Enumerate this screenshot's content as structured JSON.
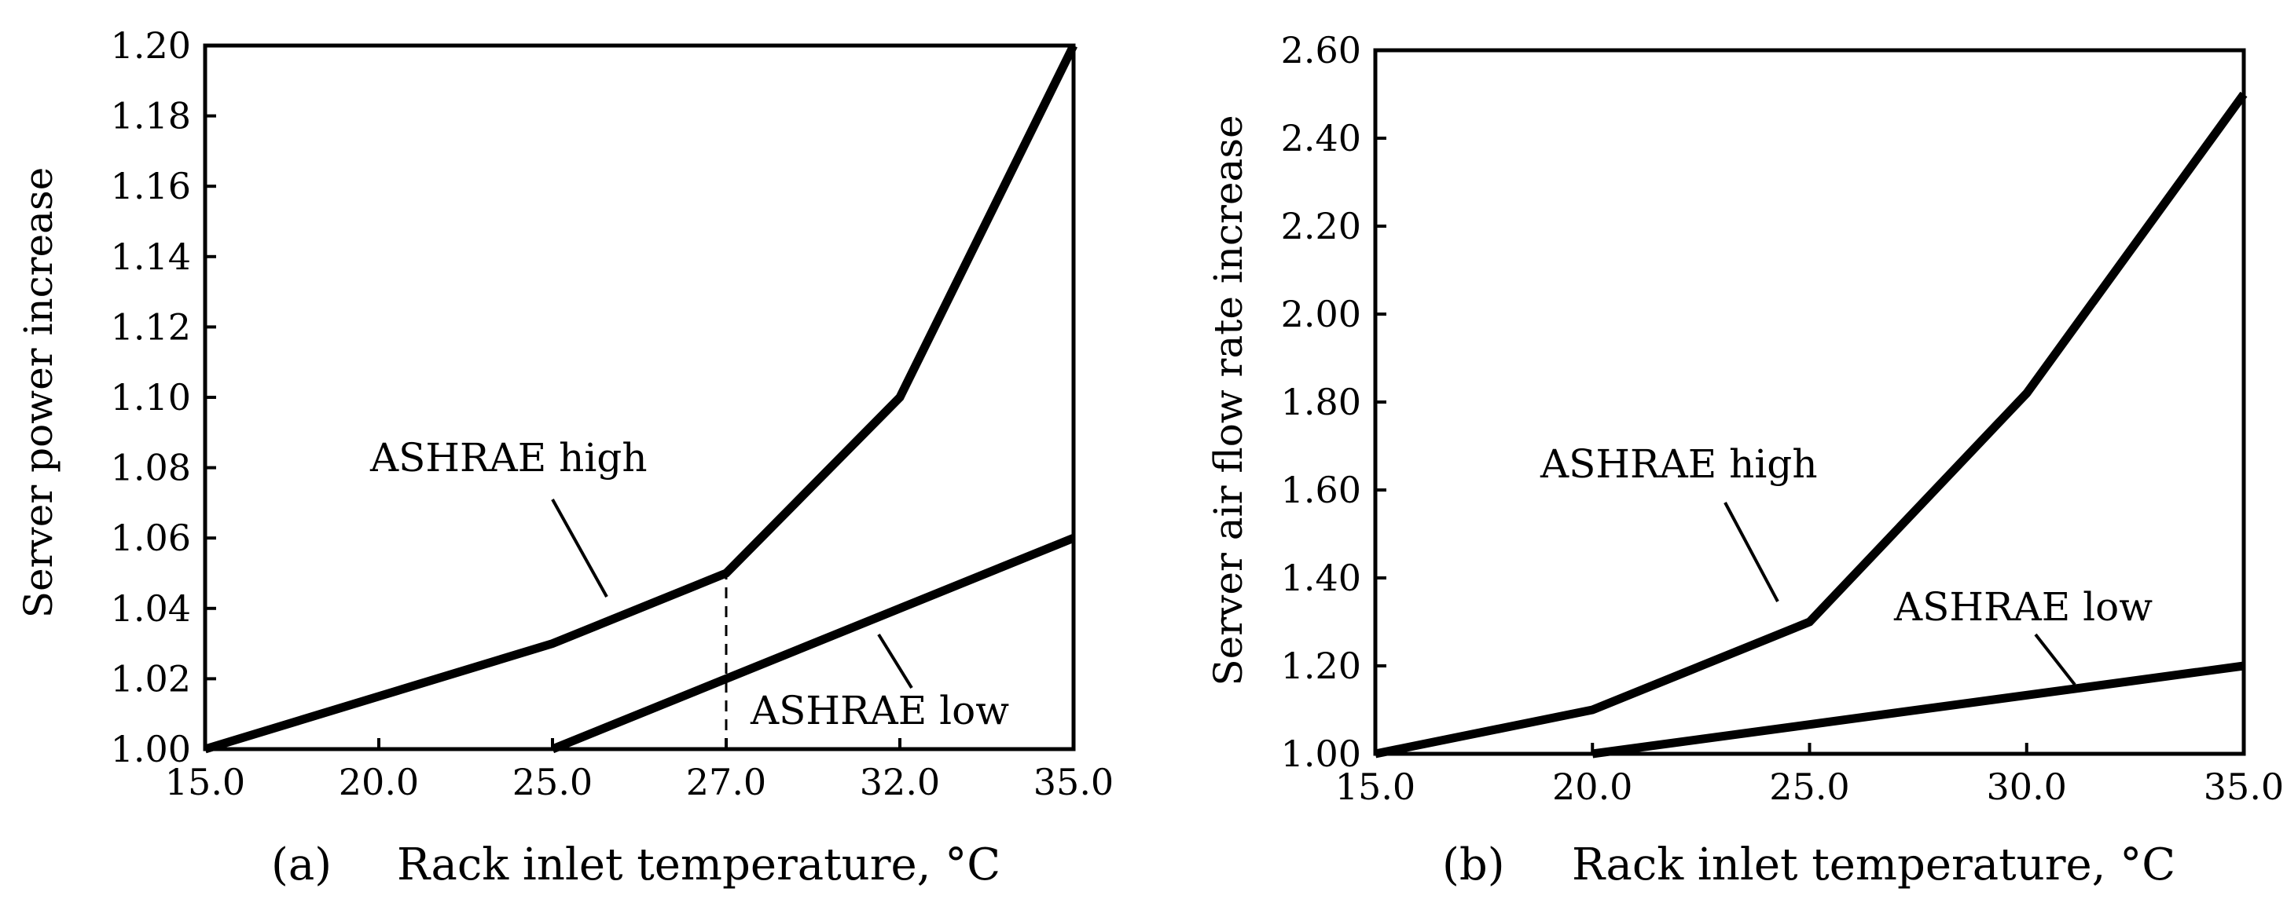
{
  "chart_data": [
    {
      "type": "line",
      "panel_label": "(a)",
      "xlabel": "Rack inlet temperature, °C",
      "ylabel": "Server power increase",
      "ylim": [
        1.0,
        1.2
      ],
      "x_tick_labels": [
        "15.0",
        "20.0",
        "25.0",
        "27.0",
        "32.0",
        "35.0"
      ],
      "x_tick_values": [
        15,
        20,
        25,
        27,
        32,
        35
      ],
      "y_ticks": [
        "1.00",
        "1.02",
        "1.04",
        "1.06",
        "1.08",
        "1.10",
        "1.12",
        "1.14",
        "1.16",
        "1.18",
        "1.20"
      ],
      "grid": false,
      "series": [
        {
          "name": "ASHRAE high",
          "x": [
            15,
            25,
            27,
            32,
            35
          ],
          "y": [
            1.0,
            1.03,
            1.05,
            1.1,
            1.2
          ]
        },
        {
          "name": "ASHRAE low",
          "x": [
            25,
            35
          ],
          "y": [
            1.0,
            1.06
          ]
        }
      ],
      "reference_line": {
        "x": 27,
        "y_from": 1.0,
        "y_to": 1.05,
        "style": "dashed"
      }
    },
    {
      "type": "line",
      "panel_label": "(b)",
      "xlabel": "Rack inlet temperature, °C",
      "ylabel": "Server air flow rate increase",
      "ylim": [
        1.0,
        2.6
      ],
      "x_tick_labels": [
        "15.0",
        "20.0",
        "25.0",
        "30.0",
        "35.0"
      ],
      "x_tick_values": [
        15,
        20,
        25,
        30,
        35
      ],
      "y_ticks": [
        "1.00",
        "1.20",
        "1.40",
        "1.60",
        "1.80",
        "2.00",
        "2.20",
        "2.40",
        "2.60"
      ],
      "grid": false,
      "series": [
        {
          "name": "ASHRAE high",
          "x": [
            15,
            20,
            25,
            30,
            35
          ],
          "y": [
            1.0,
            1.1,
            1.3,
            1.82,
            2.5
          ]
        },
        {
          "name": "ASHRAE low",
          "x": [
            20,
            35
          ],
          "y": [
            1.0,
            1.2
          ]
        }
      ]
    }
  ]
}
